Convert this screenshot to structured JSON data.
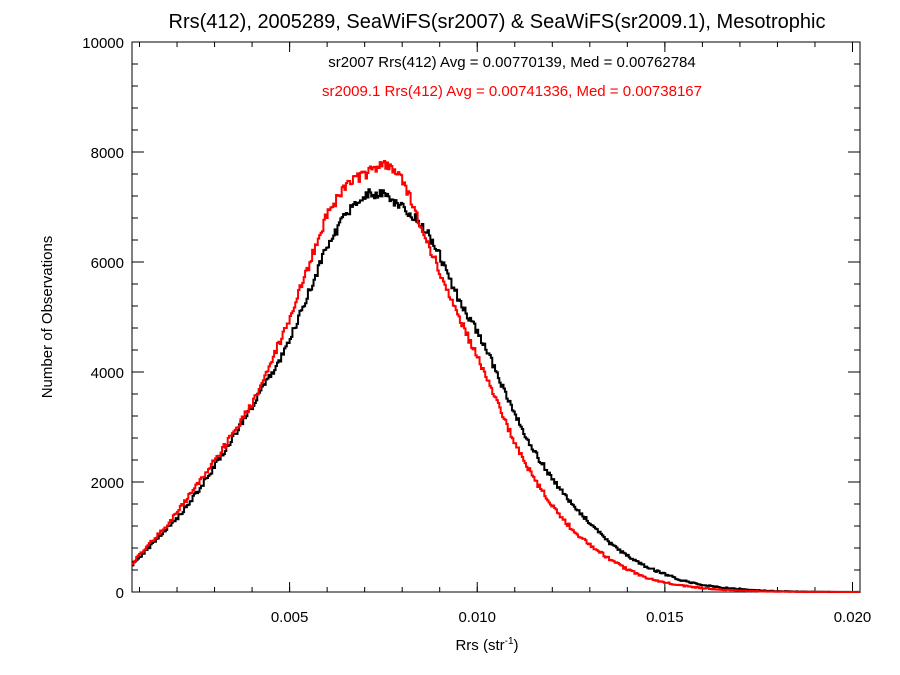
{
  "chart_data": {
    "type": "line",
    "title": "Rrs(412), 2005289, SeaWiFS(sr2007) & SeaWiFS(sr2009.1), Mesotrophic",
    "xlabel_main": "Rrs (str",
    "xlabel_sup": "-1",
    "xlabel_close": ")",
    "ylabel": "Number of Observations",
    "xlim": [
      0.0008,
      0.0202
    ],
    "ylim": [
      0,
      10000
    ],
    "x_ticks": [
      0.005,
      0.01,
      0.015,
      0.02
    ],
    "x_tick_labels": [
      "0.005",
      "0.010",
      "0.015",
      "0.020"
    ],
    "y_ticks": [
      0,
      2000,
      4000,
      6000,
      8000,
      10000
    ],
    "y_tick_labels": [
      "0",
      "2000",
      "4000",
      "6000",
      "8000",
      "10000"
    ],
    "annotations": [
      "sr2007 Rrs(412) Avg = 0.00770139, Med = 0.00762784",
      "sr2009.1 Rrs(412) Avg = 0.00741336, Med = 0.00738167"
    ],
    "series": [
      {
        "color": "#000000",
        "x": [
          0.0008,
          0.001,
          0.0015,
          0.002,
          0.0025,
          0.003,
          0.0035,
          0.004,
          0.0045,
          0.005,
          0.0055,
          0.006,
          0.0065,
          0.007,
          0.0075,
          0.008,
          0.0085,
          0.009,
          0.0095,
          0.01,
          0.0105,
          0.011,
          0.0115,
          0.012,
          0.0125,
          0.013,
          0.0135,
          0.014,
          0.0145,
          0.015,
          0.0155,
          0.016,
          0.0165,
          0.017,
          0.0175,
          0.018,
          0.0185,
          0.019,
          0.0195,
          0.02
        ],
        "values": [
          500,
          650,
          1000,
          1350,
          1800,
          2300,
          2850,
          3400,
          3950,
          4600,
          5450,
          6300,
          6900,
          7250,
          7250,
          7000,
          6700,
          6100,
          5300,
          4700,
          4000,
          3200,
          2550,
          2050,
          1600,
          1250,
          900,
          650,
          450,
          320,
          200,
          130,
          80,
          50,
          30,
          15,
          8,
          4,
          2,
          1
        ]
      },
      {
        "color": "#ff0000",
        "x": [
          0.0008,
          0.001,
          0.0015,
          0.002,
          0.0025,
          0.003,
          0.0035,
          0.004,
          0.0045,
          0.005,
          0.0055,
          0.006,
          0.0065,
          0.007,
          0.0075,
          0.008,
          0.0085,
          0.009,
          0.0095,
          0.01,
          0.0105,
          0.011,
          0.0115,
          0.012,
          0.0125,
          0.013,
          0.0135,
          0.014,
          0.0145,
          0.015,
          0.0155,
          0.016,
          0.0165,
          0.017,
          0.0175,
          0.018,
          0.0185,
          0.019,
          0.0195,
          0.02
        ],
        "values": [
          500,
          700,
          1050,
          1450,
          1950,
          2400,
          2900,
          3450,
          4200,
          5000,
          5950,
          6900,
          7400,
          7600,
          7800,
          7500,
          6600,
          5800,
          5000,
          4250,
          3450,
          2700,
          2050,
          1550,
          1150,
          850,
          600,
          400,
          260,
          170,
          110,
          70,
          40,
          25,
          12,
          6,
          3,
          2,
          1,
          0
        ]
      }
    ],
    "colors": {
      "series1": "#000000",
      "series2": "#ff0000"
    }
  }
}
